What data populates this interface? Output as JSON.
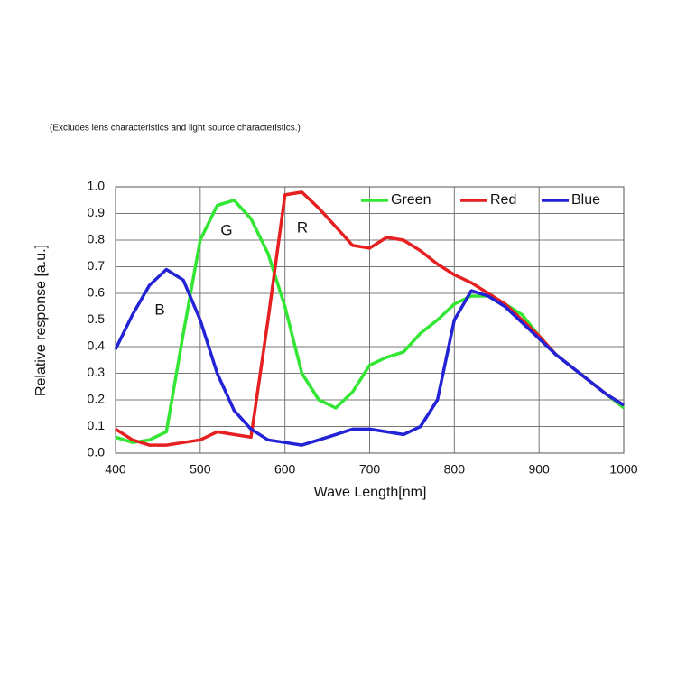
{
  "chart_data": {
    "type": "line",
    "subtitle": "(Excludes lens characteristics and light source characteristics.)",
    "x_label": "Wave Length[nm]",
    "y_label": "Relative response [a.u.]",
    "annotations": [
      "G",
      "R",
      "B"
    ],
    "x": [
      400,
      420,
      440,
      460,
      480,
      500,
      520,
      540,
      560,
      580,
      600,
      620,
      640,
      660,
      680,
      700,
      720,
      740,
      760,
      780,
      800,
      820,
      840,
      860,
      880,
      900,
      920,
      940,
      960,
      980,
      1000
    ],
    "series": [
      {
        "name": "Green",
        "color": "#33e633",
        "values": [
          0.06,
          0.04,
          0.05,
          0.08,
          0.45,
          0.8,
          0.93,
          0.95,
          0.88,
          0.75,
          0.55,
          0.3,
          0.2,
          0.17,
          0.23,
          0.33,
          0.36,
          0.38,
          0.45,
          0.5,
          0.56,
          0.59,
          0.59,
          0.56,
          0.52,
          0.44,
          0.37,
          0.32,
          0.27,
          0.22,
          0.17
        ]
      },
      {
        "name": "Red",
        "color": "#e62020",
        "values": [
          0.09,
          0.05,
          0.03,
          0.03,
          0.04,
          0.05,
          0.08,
          0.07,
          0.06,
          0.5,
          0.97,
          0.98,
          0.92,
          0.85,
          0.78,
          0.77,
          0.81,
          0.8,
          0.76,
          0.71,
          0.67,
          0.64,
          0.6,
          0.56,
          0.5,
          0.44,
          0.37,
          0.32,
          0.27,
          0.22,
          0.18
        ]
      },
      {
        "name": "Blue",
        "color": "#2222d6",
        "values": [
          0.39,
          0.52,
          0.63,
          0.69,
          0.65,
          0.5,
          0.3,
          0.16,
          0.09,
          0.05,
          0.04,
          0.03,
          0.05,
          0.07,
          0.09,
          0.09,
          0.08,
          0.07,
          0.1,
          0.2,
          0.5,
          0.61,
          0.59,
          0.55,
          0.49,
          0.43,
          0.37,
          0.32,
          0.27,
          0.22,
          0.18
        ]
      }
    ],
    "xlim": [
      400,
      1000
    ],
    "xticks": [
      400,
      500,
      600,
      700,
      800,
      900,
      1000
    ],
    "ylim": [
      0,
      1
    ],
    "yticks": [
      {
        "value": 0,
        "label": "0.0"
      },
      0.1,
      0.2,
      0.3,
      0.4,
      0.5,
      0.6,
      0.7,
      0.8,
      0.9,
      {
        "value": 1,
        "label": "1.0"
      }
    ],
    "grid": true
  }
}
